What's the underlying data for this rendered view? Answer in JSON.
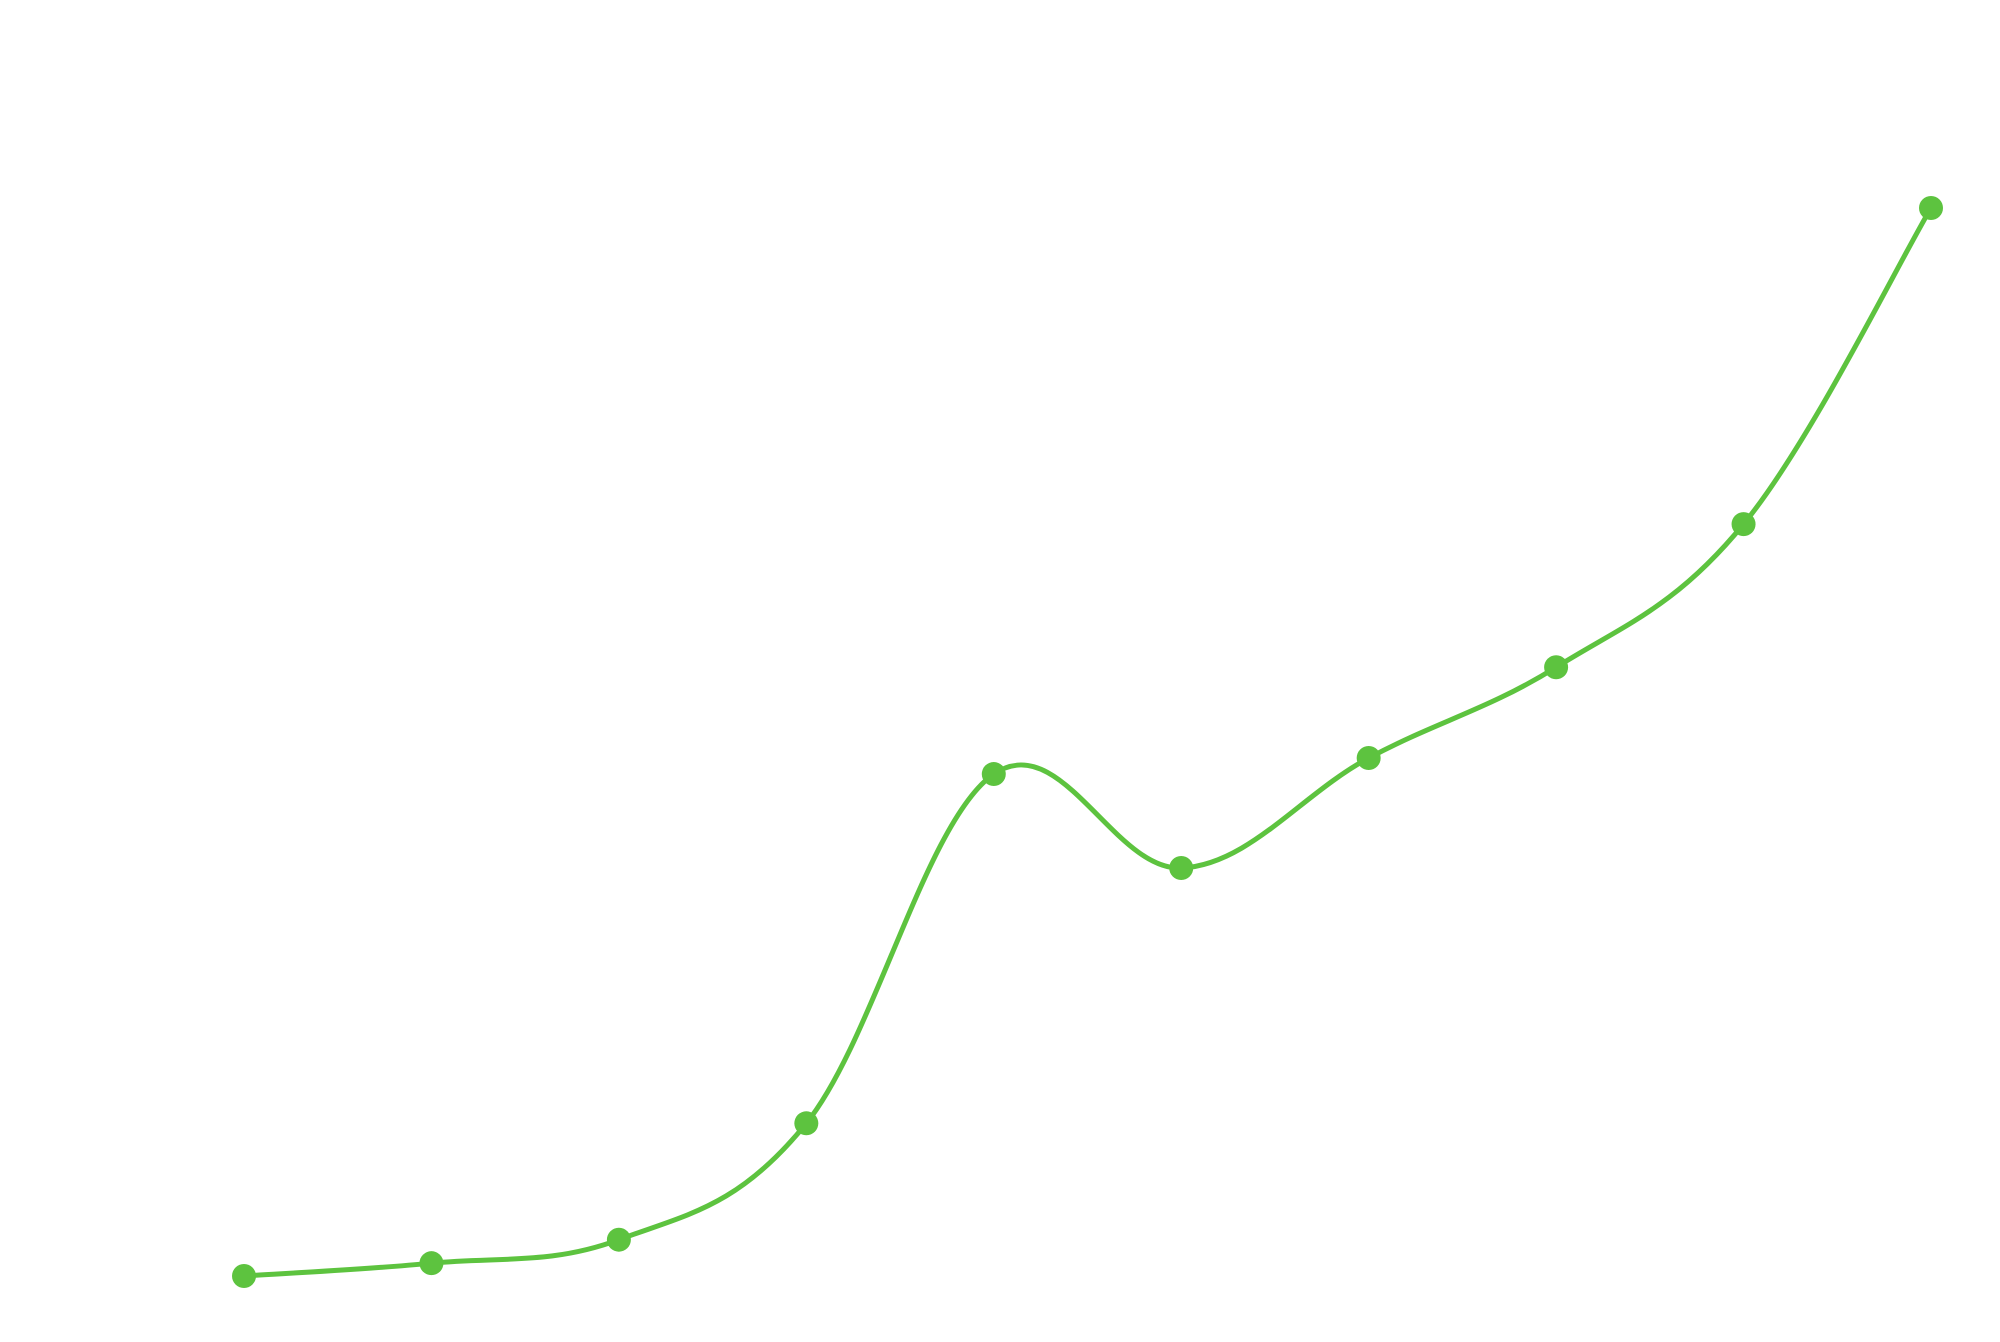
{
  "chart_data": {
    "type": "line",
    "title": "",
    "xlabel": "",
    "ylabel": "",
    "smooth": true,
    "grid": false,
    "legend": "none",
    "axes_visible": false,
    "x": [
      1,
      2,
      3,
      4,
      5,
      6,
      7,
      8,
      9,
      10
    ],
    "ylim": [
      0,
      100
    ],
    "series": [
      {
        "color": "#5dc33f",
        "values": [
          0.0,
          1.2,
          3.4,
          14.3,
          47.0,
          38.2,
          48.5,
          57.0,
          70.4,
          100.0
        ]
      }
    ]
  }
}
